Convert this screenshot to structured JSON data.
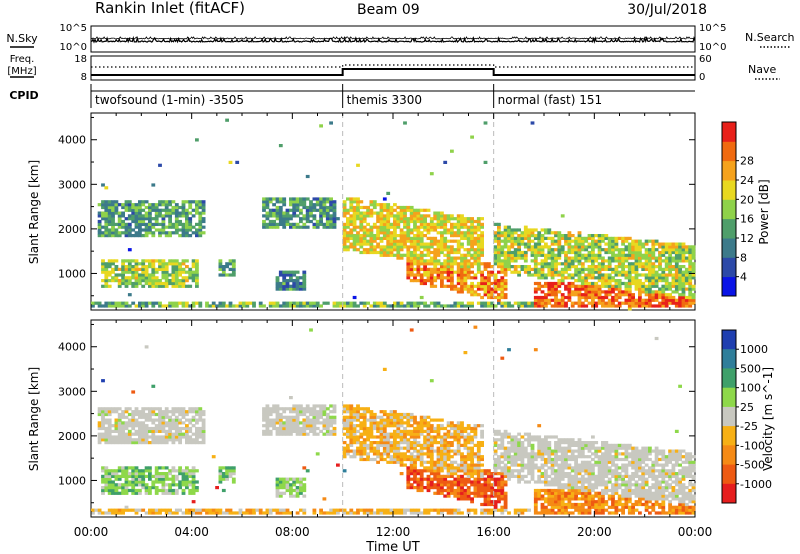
{
  "header": {
    "station": "Rankin Inlet (fitACF)",
    "beam": "Beam 09",
    "date": "30/Jul/2018"
  },
  "left_labels": {
    "nsky": "N.Sky",
    "freq_line1": "Freq.",
    "freq_line2": "[MHz]",
    "cpid": "CPID"
  },
  "right_labels": {
    "nsearch": "N.Search",
    "nave": "Nave"
  },
  "nsky_axis": {
    "left_ticks": [
      "10^5",
      "10^0"
    ],
    "right_ticks": [
      "10^5",
      "10^0"
    ]
  },
  "freq_axis": {
    "left_ticks": [
      "18",
      "8"
    ],
    "right_ticks": [
      "60",
      "0"
    ]
  },
  "cpid_segments": [
    {
      "label": "twofsound (1-min) -3505",
      "start_h": 0,
      "end_h": 10
    },
    {
      "label": "themis 3300",
      "start_h": 10,
      "end_h": 16
    },
    {
      "label": "normal (fast) 151",
      "start_h": 16,
      "end_h": 24
    }
  ],
  "colors": {
    "power_scale": [
      "#0a14e6",
      "#2c49a8",
      "#3c7a8a",
      "#4f9e6a",
      "#8fd24a",
      "#e8d820",
      "#f5a21c",
      "#f06a10",
      "#e8201a"
    ],
    "velocity_scale": [
      "#1f3fb0",
      "#2f7e9a",
      "#3fa06a",
      "#8ed84a",
      "#c8c8c0",
      "#f7b015",
      "#f58a15",
      "#ee5a12",
      "#e61e1e"
    ]
  },
  "chart_data": [
    {
      "type": "heatmap",
      "name": "power",
      "ylabel": "Slant Range [km]",
      "ylim": [
        180,
        4600
      ],
      "xlim_hours": [
        0,
        24
      ],
      "yticks": [
        1000,
        2000,
        3000,
        4000
      ],
      "colorbar_label": "Power [dB]",
      "colorbar_ticks": [
        "4",
        "8",
        "12",
        "16",
        "20",
        "24",
        "28"
      ],
      "colorbar_range": [
        0,
        32
      ],
      "mode_change_hours": [
        10,
        16
      ]
    },
    {
      "type": "heatmap",
      "name": "velocity",
      "ylabel": "Slant Range [km]",
      "xlabel": "Time UT",
      "ylim": [
        180,
        4600
      ],
      "xlim_hours": [
        0,
        24
      ],
      "yticks": [
        1000,
        2000,
        3000,
        4000
      ],
      "xticks": [
        "00:00",
        "04:00",
        "08:00",
        "12:00",
        "16:00",
        "20:00",
        "00:00"
      ],
      "colorbar_label": "Velocity [m s^-1]",
      "colorbar_ticks": [
        "1000",
        "500",
        "100",
        "25",
        "-25",
        "-100",
        "-500",
        "-1000"
      ],
      "mode_change_hours": [
        10,
        16
      ]
    }
  ]
}
